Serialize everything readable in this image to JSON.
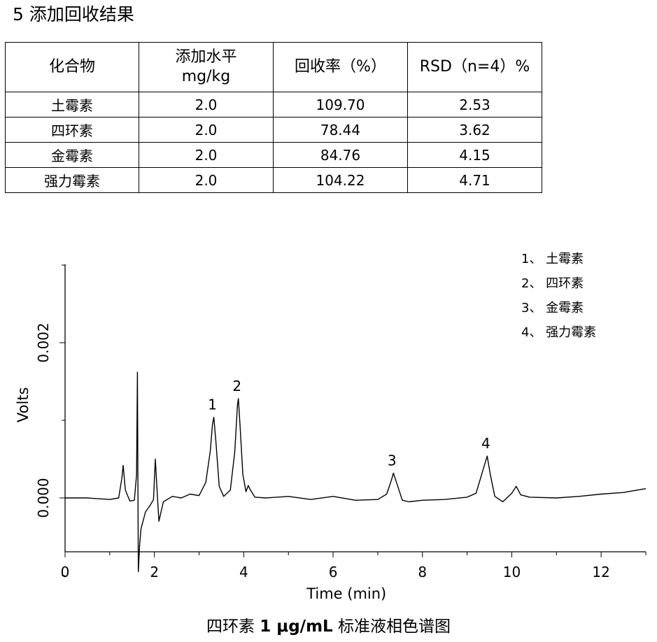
{
  "heading": "5 添加回收结果",
  "table": {
    "headers": [
      "化合物",
      "添加水平\nmg/kg",
      "回收率（%）",
      "RSD（n=4）%"
    ],
    "rows": [
      [
        "土霉素",
        "2.0",
        "109.70",
        "2.53"
      ],
      [
        "四环素",
        "2.0",
        "78.44",
        "3.62"
      ],
      [
        "金霉素",
        "2.0",
        "84.76",
        "4.15"
      ],
      [
        "强力霉素",
        "2.0",
        "104.22",
        "4.71"
      ]
    ]
  },
  "chart_data": {
    "type": "line",
    "xlabel": "Time (min)",
    "ylabel": "Volts",
    "xlim": [
      0,
      13
    ],
    "ylim": [
      -0.0014,
      0.003
    ],
    "xticks": [
      0,
      2,
      4,
      6,
      8,
      10,
      12
    ],
    "yticks": [
      0.0,
      0.002
    ],
    "ytick_labels": [
      "0.000",
      "0.002"
    ],
    "grid": false,
    "legend_position": "top-right",
    "legend": [
      "1、 土霉素",
      "2、 四环素",
      "3、 金霉素",
      "4、 强力霉素"
    ],
    "peaks": [
      {
        "label": "1",
        "x": 3.33,
        "y": 0.00104
      },
      {
        "label": "2",
        "x": 3.88,
        "y": 0.00128
      },
      {
        "label": "3",
        "x": 7.35,
        "y": 0.00032
      },
      {
        "label": "4",
        "x": 9.45,
        "y": 0.00054
      }
    ],
    "series": [
      {
        "x": [
          0.0,
          0.5,
          1.0,
          1.2,
          1.27,
          1.3,
          1.35,
          1.45,
          1.55,
          1.6,
          1.62,
          1.64,
          1.67,
          1.7,
          1.8,
          1.9,
          1.98,
          2.02,
          2.06,
          2.1,
          2.2,
          2.4,
          2.6,
          2.8,
          3.0,
          3.15,
          3.25,
          3.3,
          3.33,
          3.38,
          3.45,
          3.55,
          3.7,
          3.8,
          3.86,
          3.88,
          3.92,
          3.98,
          4.05,
          4.1,
          4.15,
          4.25,
          4.5,
          5.0,
          5.5,
          6.0,
          6.5,
          7.0,
          7.2,
          7.3,
          7.35,
          7.42,
          7.55,
          7.7,
          8.0,
          8.5,
          9.0,
          9.2,
          9.35,
          9.45,
          9.52,
          9.62,
          9.8,
          10.0,
          10.1,
          10.2,
          10.4,
          11.0,
          11.5,
          12.0,
          12.5,
          13.0
        ],
        "y": [
          0.0,
          0.0,
          -2e-05,
          0.0,
          0.00025,
          0.00042,
          0.0001,
          -4e-05,
          -3e-05,
          0.0003,
          0.00162,
          -0.00095,
          -0.0006,
          -0.0004,
          -0.00018,
          -0.0001,
          -2e-05,
          0.0005,
          0.0001,
          -0.0003,
          -5e-05,
          2e-05,
          0.0,
          5e-05,
          3e-05,
          0.0002,
          0.0006,
          0.00095,
          0.00104,
          0.0007,
          0.00015,
          2e-05,
          0.0001,
          0.0006,
          0.0012,
          0.00128,
          0.0009,
          0.0003,
          8e-05,
          0.00016,
          0.0001,
          1e-05,
          0.0,
          2e-05,
          -2e-05,
          2e-05,
          -3e-05,
          -2e-05,
          5e-05,
          0.00022,
          0.00032,
          0.0002,
          -3e-05,
          -5e-05,
          -3e-05,
          -2e-05,
          1e-05,
          6e-05,
          0.00035,
          0.00054,
          0.0003,
          2e-05,
          -5e-05,
          6e-05,
          0.00015,
          4e-05,
          1e-05,
          0.0,
          2e-05,
          5e-05,
          7e-05,
          0.00012
        ]
      }
    ]
  },
  "caption": {
    "prefix": "四环素 ",
    "bold_part": "1 μg/mL",
    "suffix": " 标准液相色谱图"
  }
}
